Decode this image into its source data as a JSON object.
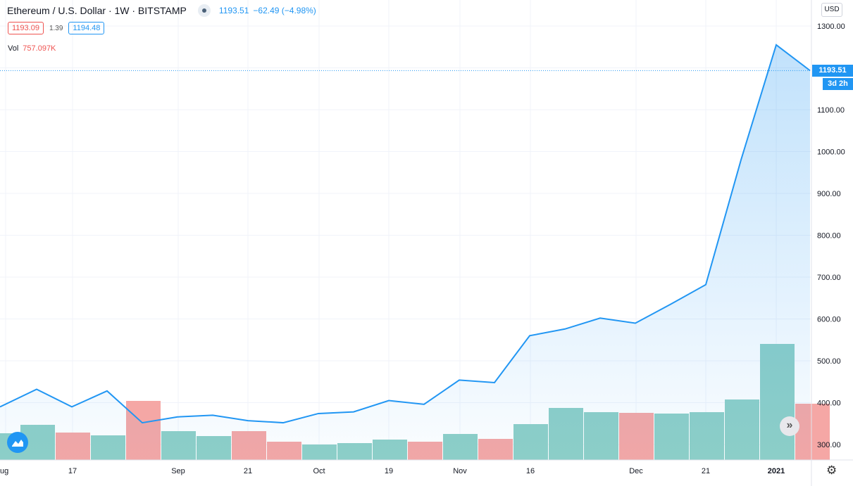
{
  "header": {
    "title": "Ethereum / U.S. Dollar · 1W · BITSTAMP",
    "last": "1193.51",
    "change": "−62.49 (−4.98%)",
    "bid": "1193.09",
    "spread": "1.39",
    "ask": "1194.48",
    "vol_label": "Vol",
    "vol_value": "757.097K"
  },
  "currency_button": "USD",
  "price_tag": "1193.51",
  "time_tag": "3d 2h",
  "scroll_icon": "double-chevron-right-icon",
  "settings_icon": "gear-icon",
  "colors": {
    "line": "#2196f3",
    "vol_up": "#8ecfc7",
    "vol_down": "#f5a7a5"
  },
  "chart_data": {
    "type": "area",
    "title": "Ethereum / U.S. Dollar · 1W · BITSTAMP",
    "ylabel": "",
    "xlabel": "",
    "ylim": [
      250,
      1320
    ],
    "y_ticks": [
      "300.00",
      "400.00",
      "500.00",
      "600.00",
      "700.00",
      "800.00",
      "900.00",
      "1000.00",
      "1100.00",
      "1300.00"
    ],
    "x_ticks": [
      "ug",
      "17",
      "Sep",
      "21",
      "Oct",
      "19",
      "Nov",
      "16",
      "Dec",
      "21",
      "2021"
    ],
    "grid": true,
    "series": [
      {
        "kind": "price-line",
        "x": [
          "2020-08-03",
          "2020-08-10",
          "2020-08-17",
          "2020-08-24",
          "2020-08-31",
          "2020-09-07",
          "2020-09-14",
          "2020-09-21",
          "2020-09-28",
          "2020-10-05",
          "2020-10-12",
          "2020-10-19",
          "2020-10-26",
          "2020-11-02",
          "2020-11-09",
          "2020-11-16",
          "2020-11-23",
          "2020-11-30",
          "2020-12-07",
          "2020-12-14",
          "2020-12-21",
          "2020-12-28",
          "2021-01-04",
          "2021-01-11"
        ],
        "values": [
          390,
          432,
          390,
          428,
          352,
          366,
          370,
          357,
          352,
          374,
          378,
          405,
          396,
          454,
          448,
          560,
          576,
          602,
          590,
          635,
          682,
          980,
          1255,
          1193.51
        ]
      },
      {
        "kind": "volume",
        "x": [
          "2020-08-03",
          "2020-08-10",
          "2020-08-17",
          "2020-08-24",
          "2020-08-31",
          "2020-09-07",
          "2020-09-14",
          "2020-09-21",
          "2020-09-28",
          "2020-10-05",
          "2020-10-12",
          "2020-10-19",
          "2020-10-26",
          "2020-11-02",
          "2020-11-09",
          "2020-11-16",
          "2020-11-23",
          "2020-11-30",
          "2020-12-07",
          "2020-12-14",
          "2020-12-21",
          "2020-12-28",
          "2021-01-04",
          "2021-01-11"
        ],
        "values": [
          0.28,
          0.46,
          0.29,
          0.49,
          0.29,
          0.32,
          0.45,
          0.2,
          0.34,
          0.38,
          0.35,
          0.43,
          0.42,
          0.54,
          0.57,
          0.59,
          0.58,
          0.61,
          0.71,
          0.7,
          0.7,
          0.69,
          1.0,
          0.71
        ],
        "direction": [
          "up",
          "up",
          "down",
          "up",
          "down",
          "up",
          "up",
          "down",
          "down",
          "up",
          "up",
          "up",
          "down",
          "up",
          "down",
          "up",
          "up",
          "up",
          "down",
          "up",
          "up",
          "up",
          "up",
          "down"
        ]
      }
    ]
  }
}
